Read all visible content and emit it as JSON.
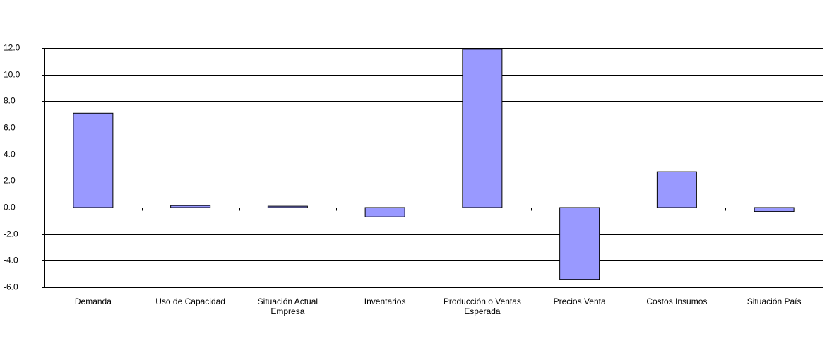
{
  "chart_data": {
    "type": "bar",
    "categories": [
      "Demanda",
      "Uso de Capacidad",
      "Situación Actual Empresa",
      "Inventarios",
      "Producción o Ventas Esperada",
      "Precios Venta",
      "Costos Insumos",
      "Situación País"
    ],
    "values": [
      7.1,
      0.15,
      0.1,
      -0.7,
      11.9,
      -5.4,
      2.7,
      -0.3
    ],
    "color": "#9999ff",
    "ylim": [
      -6,
      12
    ],
    "yticks": [
      {
        "value": -6,
        "label": "-6.0"
      },
      {
        "value": -4,
        "label": "-4.0"
      },
      {
        "value": -2,
        "label": "-2.0"
      },
      {
        "value": 0,
        "label": "0.0"
      },
      {
        "value": 2,
        "label": "2.0"
      },
      {
        "value": 4,
        "label": "4.0"
      },
      {
        "value": 6,
        "label": "6.0"
      },
      {
        "value": 8,
        "label": "8.0"
      },
      {
        "value": 10,
        "label": "10.0"
      },
      {
        "value": 12,
        "label": "12.0"
      }
    ],
    "grid": true
  }
}
